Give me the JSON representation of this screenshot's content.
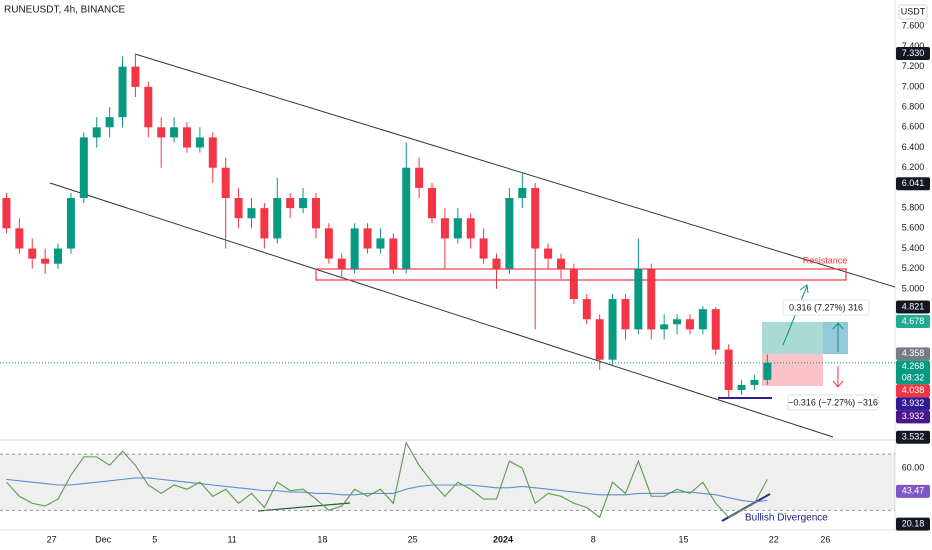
{
  "chart_data": [
    {
      "type": "candlestick",
      "title": "RUNEUSDT, 4h, BINANCE",
      "unit": "USDT",
      "up_color": "#089981",
      "down_color": "#f23645",
      "x": [
        0.5,
        1.5,
        2.5,
        3.5,
        4.5,
        5.5,
        6.5,
        7.5,
        8.5,
        9.5,
        10.5,
        11.5,
        12.5,
        13.5,
        14.5,
        15.5,
        16.5,
        17.5,
        18.5,
        19.5,
        20.5,
        21.5,
        22.5,
        23.5,
        24.5,
        25.5,
        26.5,
        27.5,
        28.5,
        29.5,
        30.5,
        31.5,
        32.5,
        33.5,
        34.5,
        35.5,
        36.5,
        37.5,
        38.5,
        39.5,
        40.5,
        41.5,
        42.5,
        43.5,
        44.5,
        45.5,
        46.5,
        47.5,
        48.5,
        49.5,
        50.5,
        51.5,
        52.5,
        53.5,
        54.5,
        55.5,
        56.5,
        57.5,
        58.5,
        59.5
      ],
      "open": [
        5.9,
        5.6,
        5.4,
        5.3,
        5.25,
        5.4,
        5.9,
        6.5,
        6.6,
        6.7,
        7.2,
        7.0,
        6.6,
        6.5,
        6.6,
        6.4,
        6.5,
        6.2,
        5.9,
        5.7,
        5.8,
        5.5,
        5.9,
        5.8,
        5.9,
        5.6,
        5.3,
        5.2,
        5.6,
        5.4,
        5.5,
        5.2,
        6.2,
        6.0,
        5.7,
        5.5,
        5.7,
        5.5,
        5.3,
        5.2,
        5.9,
        6.0,
        5.4,
        5.3,
        5.2,
        4.9,
        4.7,
        4.3,
        4.9,
        4.6,
        5.2,
        4.6,
        4.65,
        4.7,
        4.6,
        4.8,
        4.4,
        4.0,
        4.05,
        4.1
      ],
      "high": [
        5.95,
        5.7,
        5.5,
        5.4,
        5.45,
        5.95,
        6.55,
        6.7,
        6.8,
        7.3,
        7.33,
        7.05,
        6.7,
        6.7,
        6.65,
        6.6,
        6.55,
        6.3,
        6.0,
        5.9,
        5.85,
        6.1,
        5.95,
        6.0,
        5.95,
        5.65,
        5.35,
        5.65,
        5.65,
        5.6,
        5.55,
        6.45,
        6.3,
        6.05,
        5.8,
        5.8,
        5.75,
        5.6,
        5.35,
        6.0,
        6.15,
        6.05,
        5.45,
        5.35,
        5.25,
        4.95,
        4.75,
        4.95,
        4.95,
        5.5,
        5.25,
        4.75,
        4.75,
        4.75,
        4.83,
        4.82,
        4.45,
        4.1,
        4.15,
        4.35
      ],
      "low": [
        5.55,
        5.35,
        5.2,
        5.15,
        5.2,
        5.35,
        5.85,
        6.4,
        6.5,
        6.6,
        6.9,
        6.5,
        6.2,
        6.45,
        6.35,
        6.35,
        6.05,
        5.4,
        5.6,
        5.6,
        5.4,
        5.45,
        5.7,
        5.75,
        5.5,
        5.25,
        5.1,
        5.15,
        5.35,
        5.35,
        5.15,
        5.15,
        5.9,
        5.65,
        5.2,
        5.45,
        5.4,
        5.25,
        5.0,
        5.15,
        5.8,
        4.6,
        5.2,
        5.1,
        4.85,
        4.65,
        4.2,
        4.25,
        4.5,
        4.55,
        4.5,
        4.5,
        4.55,
        4.55,
        4.55,
        4.35,
        3.93,
        3.95,
        4.0,
        4.05
      ],
      "close": [
        5.6,
        5.4,
        5.3,
        5.25,
        5.4,
        5.9,
        6.5,
        6.6,
        6.7,
        7.2,
        7.0,
        6.6,
        6.5,
        6.6,
        6.4,
        6.5,
        6.2,
        5.9,
        5.7,
        5.8,
        5.5,
        5.9,
        5.8,
        5.9,
        5.6,
        5.3,
        5.2,
        5.6,
        5.4,
        5.5,
        5.2,
        6.2,
        6.0,
        5.7,
        5.5,
        5.7,
        5.5,
        5.3,
        5.2,
        5.9,
        6.0,
        5.4,
        5.3,
        5.2,
        4.9,
        4.7,
        4.3,
        4.9,
        4.6,
        5.2,
        4.6,
        4.65,
        4.7,
        4.6,
        4.8,
        4.4,
        4.0,
        4.05,
        4.1,
        4.27
      ],
      "xlim": [
        0,
        69.4
      ],
      "xticks": [
        {
          "value": 4,
          "label": "27"
        },
        {
          "value": 8,
          "label": "Dec"
        },
        {
          "value": 12,
          "label": "5"
        },
        {
          "value": 18,
          "label": "11"
        },
        {
          "value": 25,
          "label": "18"
        },
        {
          "value": 32,
          "label": "25"
        },
        {
          "value": 39,
          "label": "2024"
        },
        {
          "value": 46,
          "label": "8"
        },
        {
          "value": 53,
          "label": "15"
        },
        {
          "value": 60,
          "label": "22"
        },
        {
          "value": 64,
          "label": "26"
        }
      ],
      "ylim": [
        3.5,
        7.86
      ],
      "yticks": [
        {
          "value": 7.6,
          "label": "7.600"
        },
        {
          "value": 7.4,
          "label": "7.400"
        },
        {
          "value": 7.2,
          "label": "7.200"
        },
        {
          "value": 7.0,
          "label": "7.000"
        },
        {
          "value": 6.8,
          "label": "6.800"
        },
        {
          "value": 6.6,
          "label": "6.600"
        },
        {
          "value": 6.4,
          "label": "6.400"
        },
        {
          "value": 6.2,
          "label": "6.200"
        },
        {
          "value": 5.8,
          "label": "5.800"
        },
        {
          "value": 5.6,
          "label": "5.600"
        },
        {
          "value": 5.4,
          "label": "5.400"
        },
        {
          "value": 5.2,
          "label": "5.200"
        },
        {
          "value": 5.0,
          "label": "5.000"
        }
      ],
      "price_labels": [
        {
          "value": 7.33,
          "label": "7.330",
          "color": "#131722"
        },
        {
          "value": 6.041,
          "label": "6.041",
          "color": "#131722"
        },
        {
          "value": 4.821,
          "label": "4.821",
          "color": "#131722"
        },
        {
          "value": 4.678,
          "label": "4.678",
          "color": "#22ab94"
        },
        {
          "value": 4.358,
          "label": "4.358",
          "color": "#787b86"
        },
        {
          "value": 4.268,
          "label": "4.268",
          "countdown": "08:32",
          "color": "#089981",
          "dotted": true
        },
        {
          "value": 4.038,
          "label": "4.038",
          "color": "#f23645"
        },
        {
          "value": 3.932,
          "label": "3.932",
          "color": "#311b92"
        },
        {
          "value": 3.932,
          "label": "3.932",
          "color": "#4a148c"
        },
        {
          "value": 3.532,
          "label": "3.532",
          "color": "#131722"
        }
      ],
      "annotations": [
        "Resistance",
        "0.316 (7.27%) 316",
        "−0.316 (−7.27%) −316"
      ]
    },
    {
      "type": "line",
      "x": [
        0.5,
        1.5,
        2.5,
        3.5,
        4.5,
        5.5,
        6.5,
        7.5,
        8.5,
        9.5,
        10.5,
        11.5,
        12.5,
        13.5,
        14.5,
        15.5,
        16.5,
        17.5,
        18.5,
        19.5,
        20.5,
        21.5,
        22.5,
        23.5,
        24.5,
        25.5,
        26.5,
        27.5,
        28.5,
        29.5,
        30.5,
        31.5,
        32.5,
        33.5,
        34.5,
        35.5,
        36.5,
        37.5,
        38.5,
        39.5,
        40.5,
        41.5,
        42.5,
        43.5,
        44.5,
        45.5,
        46.5,
        47.5,
        48.5,
        49.5,
        50.5,
        51.5,
        52.5,
        53.5,
        54.5,
        55.5,
        56.5,
        57.5,
        58.5,
        59.5
      ],
      "xlim": [
        0,
        69.4
      ],
      "series": [
        {
          "color": "#5b9c4a",
          "values": [
            50,
            40,
            35,
            33,
            38,
            55,
            68,
            68,
            62,
            72,
            62,
            48,
            42,
            48,
            45,
            50,
            40,
            45,
            35,
            42,
            32,
            50,
            44,
            45,
            38,
            30,
            33,
            45,
            40,
            45,
            35,
            78,
            62,
            50,
            40,
            50,
            45,
            38,
            38,
            65,
            60,
            35,
            42,
            40,
            35,
            32,
            25,
            50,
            42,
            65,
            40,
            40,
            45,
            42,
            50,
            35,
            25,
            30,
            35,
            52
          ]
        },
        {
          "color": "#5b8fd6",
          "values": [
            52,
            51,
            50,
            49,
            48,
            48,
            49,
            50,
            51,
            52,
            53,
            53,
            52,
            51,
            50,
            49,
            48,
            47,
            46,
            45,
            44,
            44,
            43,
            43,
            42,
            42,
            41,
            41,
            42,
            42,
            42,
            45,
            47,
            48,
            48,
            48,
            48,
            47,
            46,
            46,
            47,
            46,
            45,
            44,
            43,
            42,
            41,
            41,
            41,
            42,
            42,
            42,
            43,
            43,
            42,
            41,
            39,
            37,
            36,
            37
          ]
        }
      ],
      "ylim": [
        16,
        80
      ],
      "yticks": [
        {
          "value": 60,
          "label": "60.00"
        }
      ],
      "levels": [
        70,
        30
      ],
      "price_labels": [
        {
          "value": 43.47,
          "label": "43.47",
          "color": "#7e57c2"
        },
        {
          "value": 20.18,
          "label": "20.18",
          "color": "#131722"
        }
      ],
      "annotations": [
        "Bullish Divergence"
      ]
    }
  ]
}
